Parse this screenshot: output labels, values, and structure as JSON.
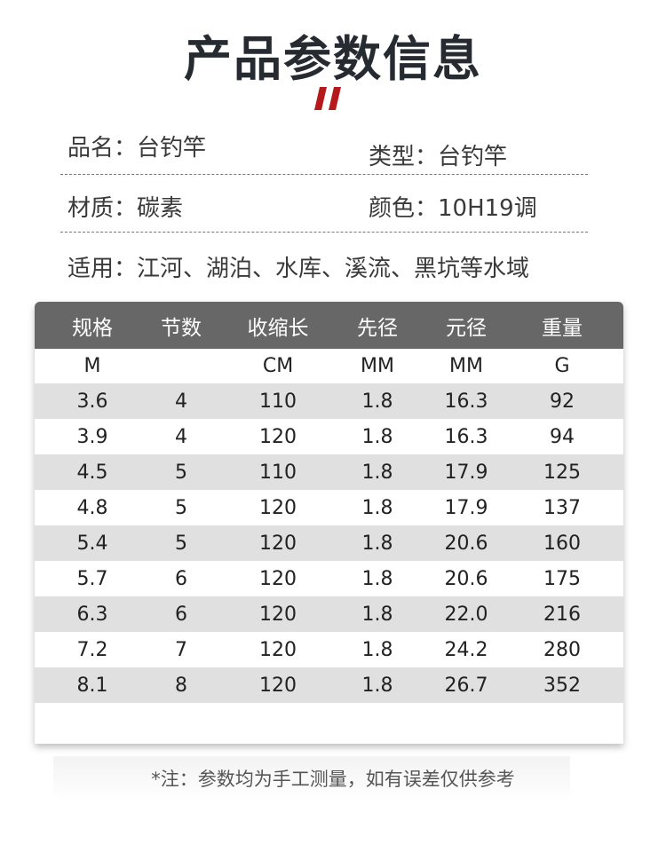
{
  "title": "产品参数信息",
  "accent_color": "#b5191c",
  "info": {
    "name": "品名：台钓竿",
    "type": "类型：台钓竿",
    "material": "材质：碳素",
    "color": "颜色：10H19调",
    "usage": "适用：江河、湖泊、水库、溪流、黑坑等水域"
  },
  "table": {
    "headers": [
      "规格",
      "节数",
      "收缩长",
      "先径",
      "元径",
      "重量"
    ],
    "units": [
      "M",
      "",
      "CM",
      "MM",
      "MM",
      "G"
    ],
    "rows": [
      [
        "3.6",
        "4",
        "110",
        "1.8",
        "16.3",
        "92"
      ],
      [
        "3.9",
        "4",
        "120",
        "1.8",
        "16.3",
        "94"
      ],
      [
        "4.5",
        "5",
        "110",
        "1.8",
        "17.9",
        "125"
      ],
      [
        "4.8",
        "5",
        "120",
        "1.8",
        "17.9",
        "137"
      ],
      [
        "5.4",
        "5",
        "120",
        "1.8",
        "20.6",
        "160"
      ],
      [
        "5.7",
        "6",
        "120",
        "1.8",
        "20.6",
        "175"
      ],
      [
        "6.3",
        "6",
        "120",
        "1.8",
        "22.0",
        "216"
      ],
      [
        "7.2",
        "7",
        "120",
        "1.8",
        "24.2",
        "280"
      ],
      [
        "8.1",
        "8",
        "120",
        "1.8",
        "26.7",
        "352"
      ]
    ]
  },
  "note": "*注：参数均为手工测量，如有误差仅供参考"
}
